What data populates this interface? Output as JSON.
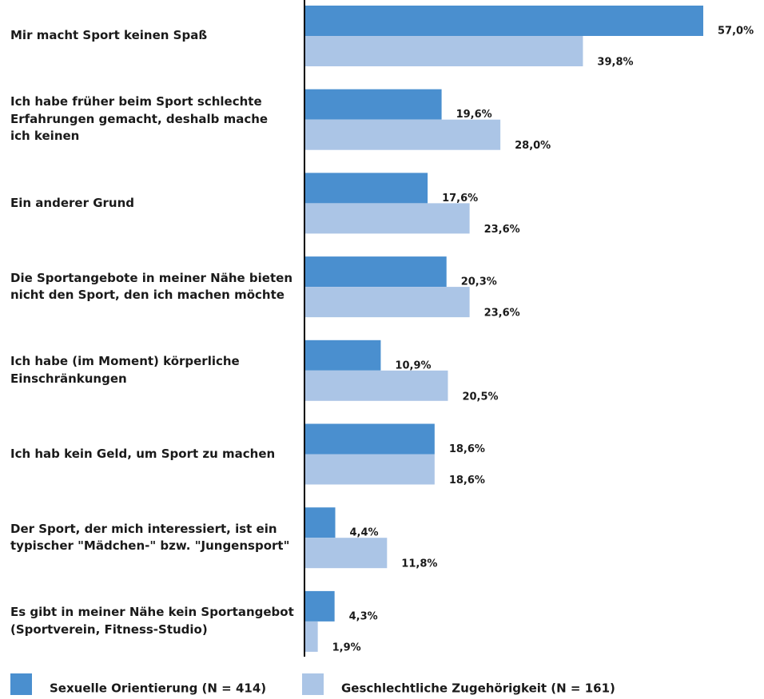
{
  "chart_data": {
    "type": "hbar",
    "categories": [
      "Mir macht Sport keinen Spaß",
      "Ich habe früher beim Sport schlechte\nErfahrungen gemacht, deshalb mache\nich keinen",
      "Ein anderer Grund",
      "Die Sportangebote in meiner Nähe bieten\nnicht den Sport, den ich machen möchte",
      "Ich habe (im Moment) körperliche\nEinschränkungen",
      "Ich hab kein Geld, um Sport zu machen",
      "Der Sport, der mich interessiert, ist ein\ntypischer \"Mädchen-\" bzw. \"Jungensport\"",
      "Es gibt in meiner Nähe kein Sportangebot\n(Sportverein, Fitness-Studio)"
    ],
    "series": [
      {
        "name": "Sexuelle Orientierung (N = 414)",
        "color": "#4a8fcf",
        "values": [
          57.0,
          19.6,
          17.6,
          20.3,
          10.9,
          18.6,
          4.4,
          4.3
        ],
        "value_labels": [
          "57,0%",
          "19,6%",
          "17,6%",
          "20,3%",
          "10,9%",
          "18,6%",
          "4,4%",
          "4,3%"
        ]
      },
      {
        "name": "Geschlechtliche Zugehörigkeit (N = 161)",
        "color": "#abc5e6",
        "values": [
          39.8,
          28.0,
          23.6,
          23.6,
          20.5,
          18.6,
          11.8,
          1.9
        ],
        "value_labels": [
          "39,8%",
          "28,0%",
          "23,6%",
          "23,6%",
          "20,5%",
          "18,6%",
          "11,8%",
          "1,9%"
        ]
      }
    ],
    "legend": "bottom"
  }
}
